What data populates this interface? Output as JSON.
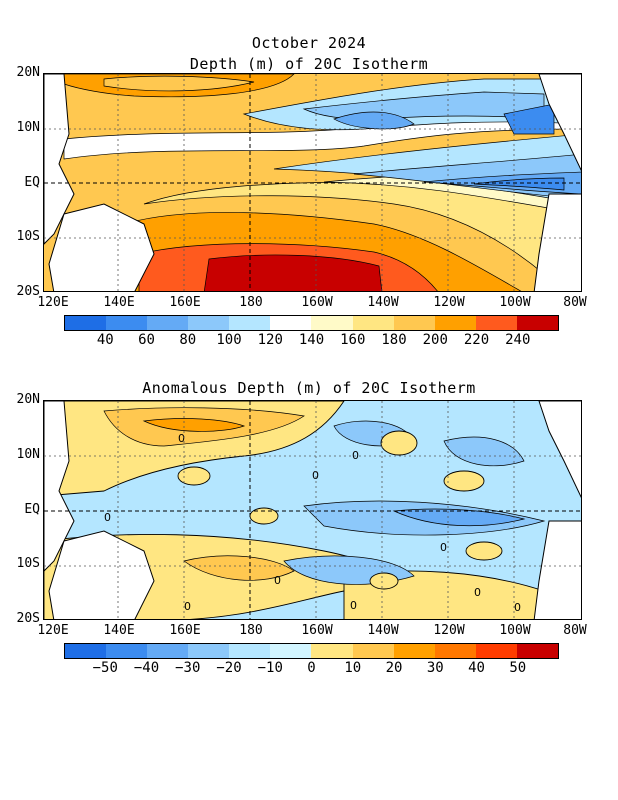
{
  "top_panel": {
    "title_line1": "October 2024",
    "title_line2": "Depth (m) of 20C Isotherm",
    "y_ticks": [
      "20N",
      "10N",
      "EQ",
      "10S",
      "20S"
    ],
    "x_ticks": [
      "120E",
      "140E",
      "160E",
      "180",
      "160W",
      "140W",
      "120W",
      "100W",
      "80W"
    ],
    "colorbar_labels": [
      "40",
      "60",
      "80",
      "100",
      "120",
      "140",
      "160",
      "180",
      "200",
      "220",
      "240"
    ],
    "colorbar_colors": [
      "#1e6ee6",
      "#3c8cf0",
      "#64aaf5",
      "#8cc8fa",
      "#b4e6ff",
      "#ffffff",
      "#fffac8",
      "#ffe682",
      "#ffc850",
      "#ffa000",
      "#ff5a1e",
      "#c80000"
    ]
  },
  "bottom_panel": {
    "title": "Anomalous Depth (m) of 20C Isotherm",
    "y_ticks": [
      "20N",
      "10N",
      "EQ",
      "10S",
      "20S"
    ],
    "x_ticks": [
      "120E",
      "140E",
      "160E",
      "180",
      "160W",
      "140W",
      "120W",
      "100W",
      "80W"
    ],
    "colorbar_labels": [
      "−50",
      "−40",
      "−30",
      "−20",
      "−10",
      "0",
      "10",
      "20",
      "30",
      "40",
      "50"
    ],
    "colorbar_colors": [
      "#1e6ee6",
      "#3c8cf0",
      "#64aaf5",
      "#8cc8fa",
      "#b4e6ff",
      "#d2f5ff",
      "#ffe682",
      "#ffc850",
      "#ffa000",
      "#ff7800",
      "#ff3c00",
      "#c80000"
    ],
    "contour_labels": [
      "0",
      "0",
      "0",
      "0",
      "0",
      "0",
      "0",
      "0",
      "0",
      "0"
    ]
  }
}
